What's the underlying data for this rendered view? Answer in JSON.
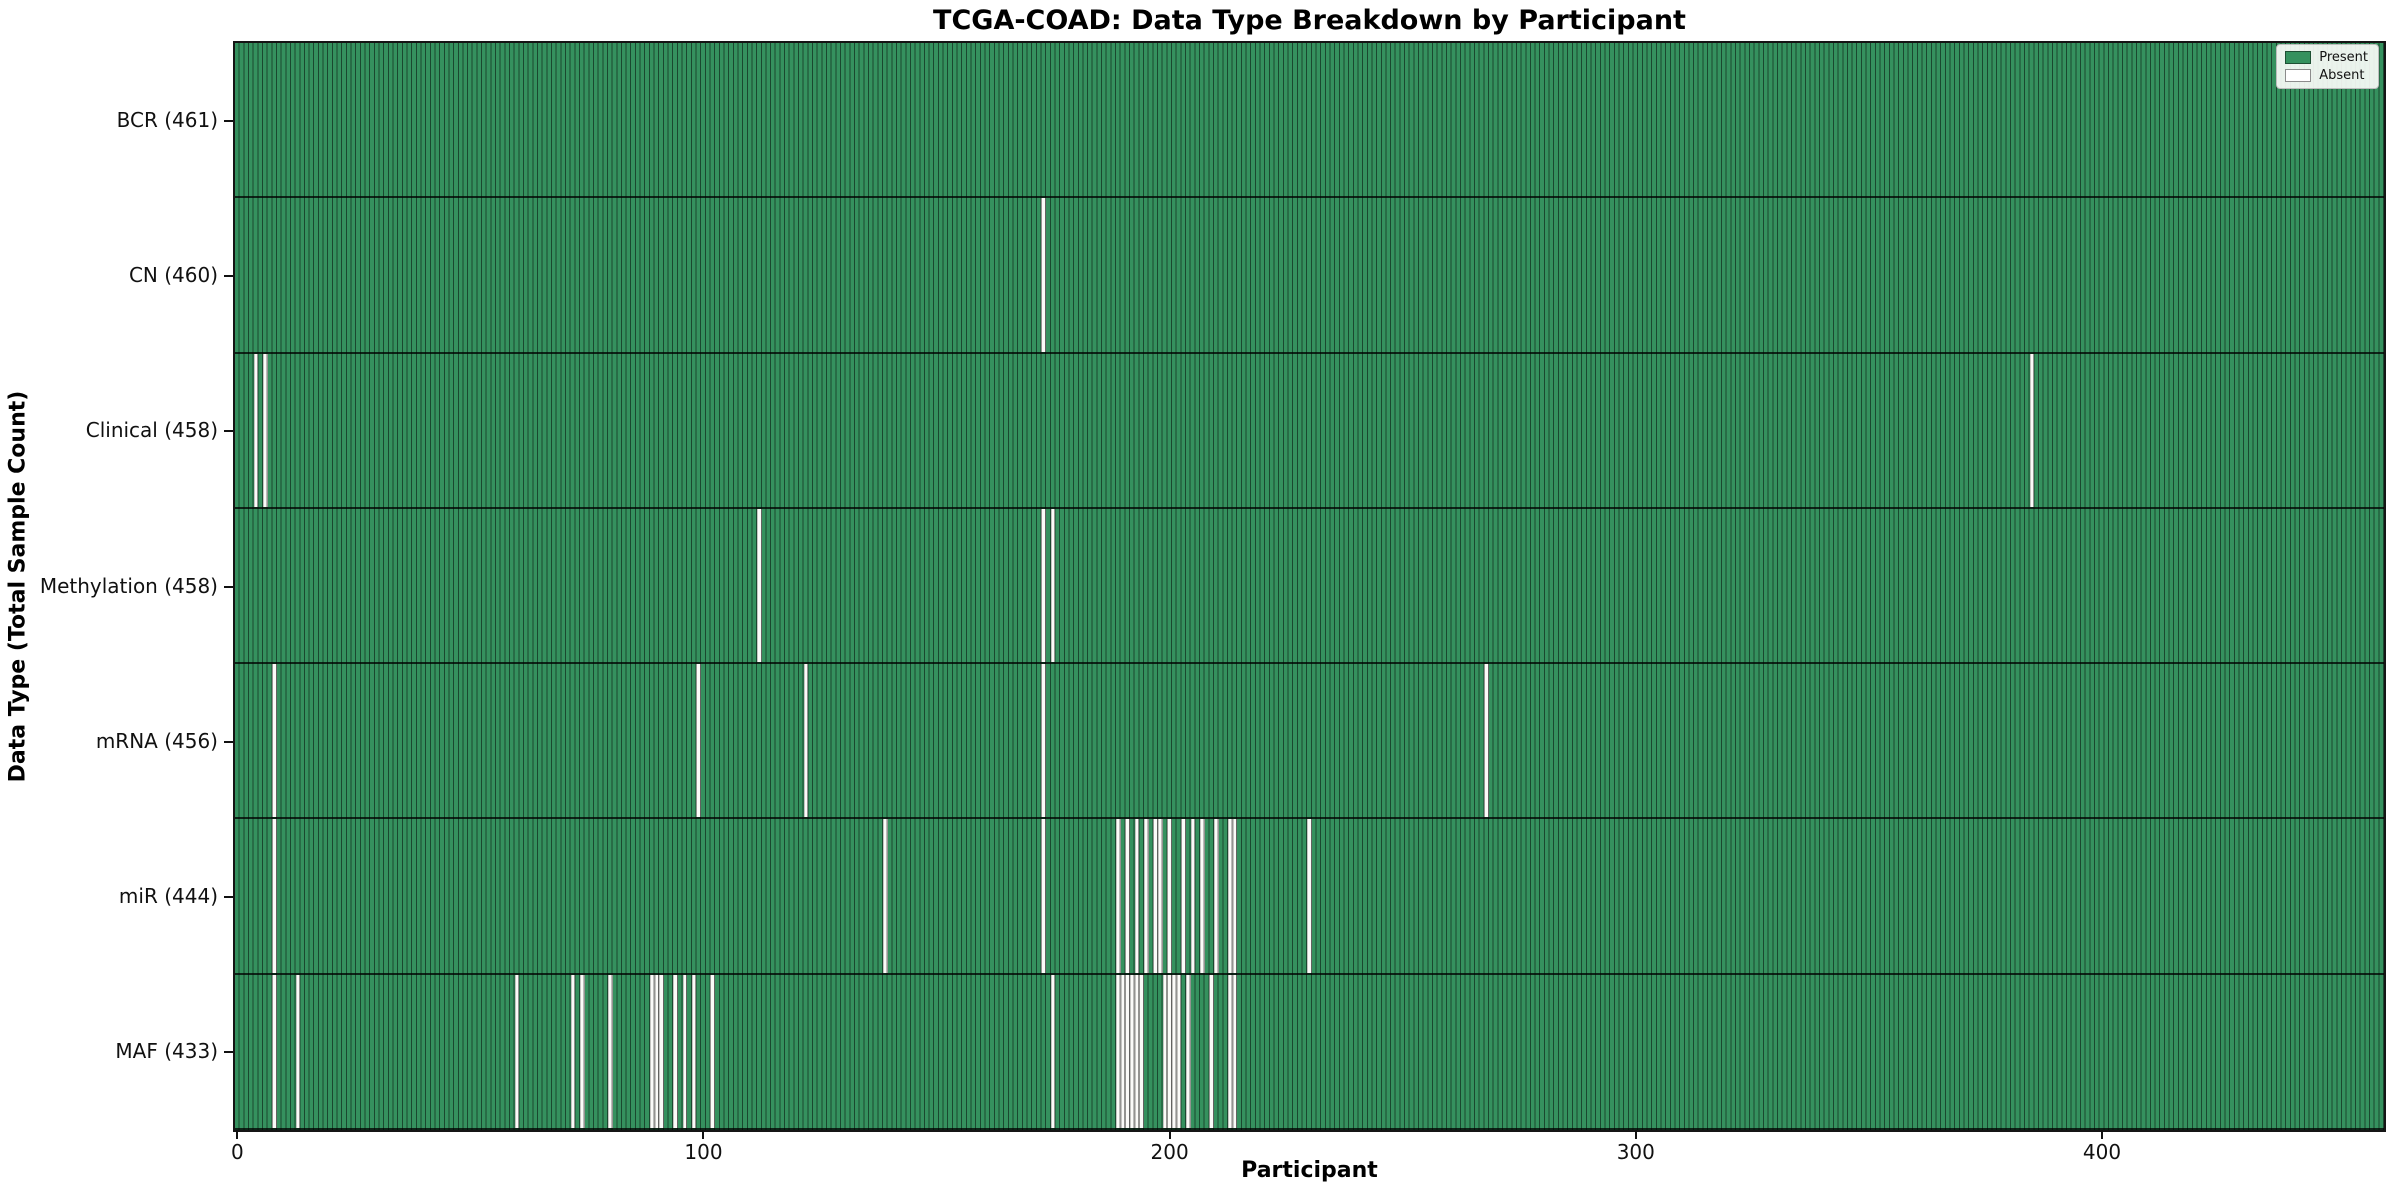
{
  "title": "TCGA-COAD: Data Type Breakdown by Participant",
  "colors": {
    "present": "#35915e",
    "absent": "#fbfbf8",
    "bar_edge": "rgba(0,0,0,0.5)",
    "spine": "#151515"
  },
  "legend": {
    "present_label": "Present",
    "absent_label": "Absent"
  },
  "chart_data": {
    "type": "heatmap",
    "title": "TCGA-COAD: Data Type Breakdown by Participant",
    "xlabel": "Participant",
    "ylabel": "Data Type (Total Sample Count)",
    "n_participants": 461,
    "x_ticks": [
      0,
      100,
      200,
      300,
      400
    ],
    "xlim": [
      -0.5,
      460.5
    ],
    "grid": false,
    "legend_position": "upper right",
    "legend_entries": [
      "Present",
      "Absent"
    ],
    "rows": [
      {
        "name": "BCR",
        "label": "BCR (461)",
        "present_count": 461,
        "absent_participants": []
      },
      {
        "name": "CN",
        "label": "CN (460)",
        "present_count": 460,
        "absent_participants": [
          173
        ]
      },
      {
        "name": "Clinical",
        "label": "Clinical (458)",
        "present_count": 458,
        "absent_participants": [
          4,
          6,
          385
        ]
      },
      {
        "name": "Methylation",
        "label": "Methylation (458)",
        "present_count": 458,
        "absent_participants": [
          112,
          173,
          175
        ]
      },
      {
        "name": "mRNA",
        "label": "mRNA (456)",
        "present_count": 456,
        "absent_participants": [
          8,
          99,
          122,
          173,
          268
        ]
      },
      {
        "name": "miR",
        "label": "miR (444)",
        "present_count": 444,
        "absent_participants": [
          8,
          139,
          173,
          189,
          191,
          193,
          195,
          197,
          198,
          200,
          203,
          205,
          207,
          210,
          213,
          214,
          230
        ]
      },
      {
        "name": "MAF",
        "label": "MAF (433)",
        "present_count": 433,
        "absent_participants": [
          8,
          13,
          60,
          72,
          74,
          80,
          89,
          90,
          91,
          94,
          96,
          98,
          102,
          175,
          189,
          190,
          191,
          192,
          193,
          194,
          199,
          200,
          201,
          202,
          204,
          209,
          213,
          214
        ]
      }
    ]
  }
}
